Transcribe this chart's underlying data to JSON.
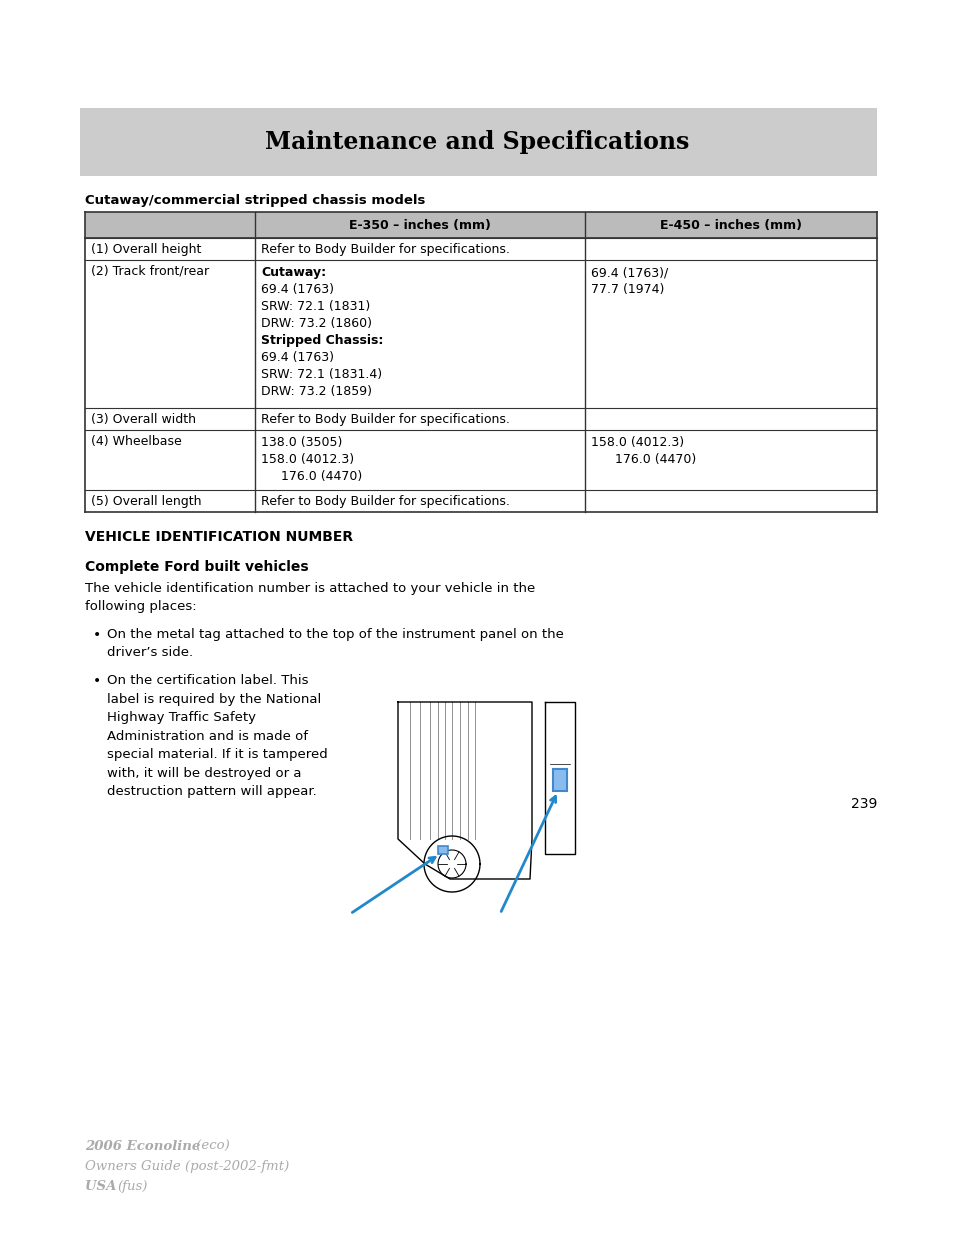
{
  "page_bg": "#ffffff",
  "header_bg": "#cccccc",
  "header_text": "Maintenance and Specifications",
  "header_text_color": "#000000",
  "section1_title": "Cutaway/commercial stripped chassis models",
  "table_header_bg": "#bbbbbb",
  "table_col_headers": [
    "",
    "E-350 – inches (mm)",
    "E-450 – inches (mm)"
  ],
  "table_rows": [
    {
      "col0": "(1) Overall height",
      "col1": "Refer to Body Builder for specifications.",
      "col2": "",
      "span": true
    },
    {
      "col0": "(2) Track front/rear",
      "col1_lines": [
        "Cutaway:",
        "69.4 (1763)",
        "SRW: 72.1 (1831)",
        "DRW: 73.2 (1860)",
        "Stripped Chassis:",
        "69.4 (1763)",
        "SRW: 72.1 (1831.4)",
        "DRW: 73.2 (1859)"
      ],
      "col1_bold": [
        0,
        4
      ],
      "col2_lines": [
        "69.4 (1763)/",
        "77.7 (1974)"
      ],
      "span": false
    },
    {
      "col0": "(3) Overall width",
      "col1": "Refer to Body Builder for specifications.",
      "col2": "",
      "span": true
    },
    {
      "col0": "(4) Wheelbase",
      "col1_lines": [
        "138.0 (3505)",
        "158.0 (4012.3)",
        "     176.0 (4470)"
      ],
      "col1_bold": [],
      "col2_lines": [
        "158.0 (4012.3)",
        "      176.0 (4470)"
      ],
      "span": false
    },
    {
      "col0": "(5) Overall length",
      "col1": "Refer to Body Builder for specifications.",
      "col2": "",
      "span": true
    }
  ],
  "section2_title": "VEHICLE IDENTIFICATION NUMBER",
  "section3_title": "Complete Ford built vehicles",
  "body_text1": "The vehicle identification number is attached to your vehicle in the\nfollowing places:",
  "bullet1": "On the metal tag attached to the top of the instrument panel on the\ndriver’s side.",
  "bullet2_lines": [
    "On the certification label. This",
    "label is required by the National",
    "Highway Traffic Safety",
    "Administration and is made of",
    "special material. If it is tampered",
    "with, it will be destroyed or a",
    "destruction pattern will appear."
  ],
  "page_number": "239",
  "footer_line1": "2006 Econoline",
  "footer_line1b": " (eco)",
  "footer_line2": "Owners Guide (post-2002-fmt)",
  "footer_line3": "USA ",
  "footer_line3b": "(fus)",
  "footer_color": "#aaaaaa"
}
